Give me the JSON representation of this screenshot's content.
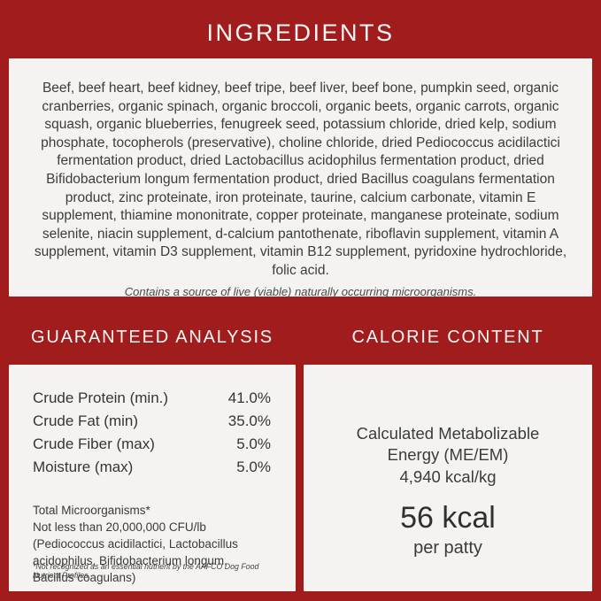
{
  "colors": {
    "background": "#a11c1c",
    "panel": "#f4f3f1",
    "text": "#3c3c3c",
    "title_text": "#faf8f6"
  },
  "ingredients": {
    "title": "INGREDIENTS",
    "text": "Beef, beef heart, beef kidney, beef tripe, beef liver, beef bone, pumpkin seed, organic cranberries, organic spinach, organic broccoli, organic beets, organic carrots, organic squash, organic blueberries, fenugreek seed, potassium chloride, dried kelp, sodium phosphate, tocopherols (preservative), choline chloride, dried Pediococcus acidilactici fermentation product, dried Lactobacillus acidophilus fermentation product, dried Bifidobacterium longum fermentation product, dried Bacillus coagulans fermentation product, zinc proteinate, iron proteinate, taurine, calcium carbonate, vitamin E supplement, thiamine mononitrate, copper proteinate, manganese proteinate, sodium selenite, niacin supplement, d-calcium pantothenate, riboflavin supplement, vitamin A supplement, vitamin D3 supplement, vitamin B12 supplement, pyridoxine hydrochloride, folic acid.",
    "note": "Contains a source of live (viable) naturally occurring microorganisms."
  },
  "guaranteed_analysis": {
    "title": "GUARANTEED ANALYSIS",
    "rows": [
      {
        "label": "Crude Protein (min.)",
        "value": "41.0%"
      },
      {
        "label": "Crude Fat (min)",
        "value": "35.0%"
      },
      {
        "label": "Crude Fiber (max)",
        "value": "5.0%"
      },
      {
        "label": "Moisture (max)",
        "value": "5.0%"
      }
    ],
    "microorganisms_title": "Total Microorganisms*",
    "microorganisms_text": "Not less than 20,000,000 CFU/lb (Pediococcus acidilactici, Lactobacillus acidophilus, Bifidobacterium longum, Bacillus coagulans)",
    "footnote": "*Not recognized as an essential nutrient by the AAFCO Dog Food Nutrient Profiles."
  },
  "calorie_content": {
    "title": "CALORIE CONTENT",
    "energy_label": "Calculated Metabolizable Energy (ME/EM)",
    "energy_value": "4,940 kcal/kg",
    "kcal_value": "56 kcal",
    "kcal_unit": "per patty"
  }
}
